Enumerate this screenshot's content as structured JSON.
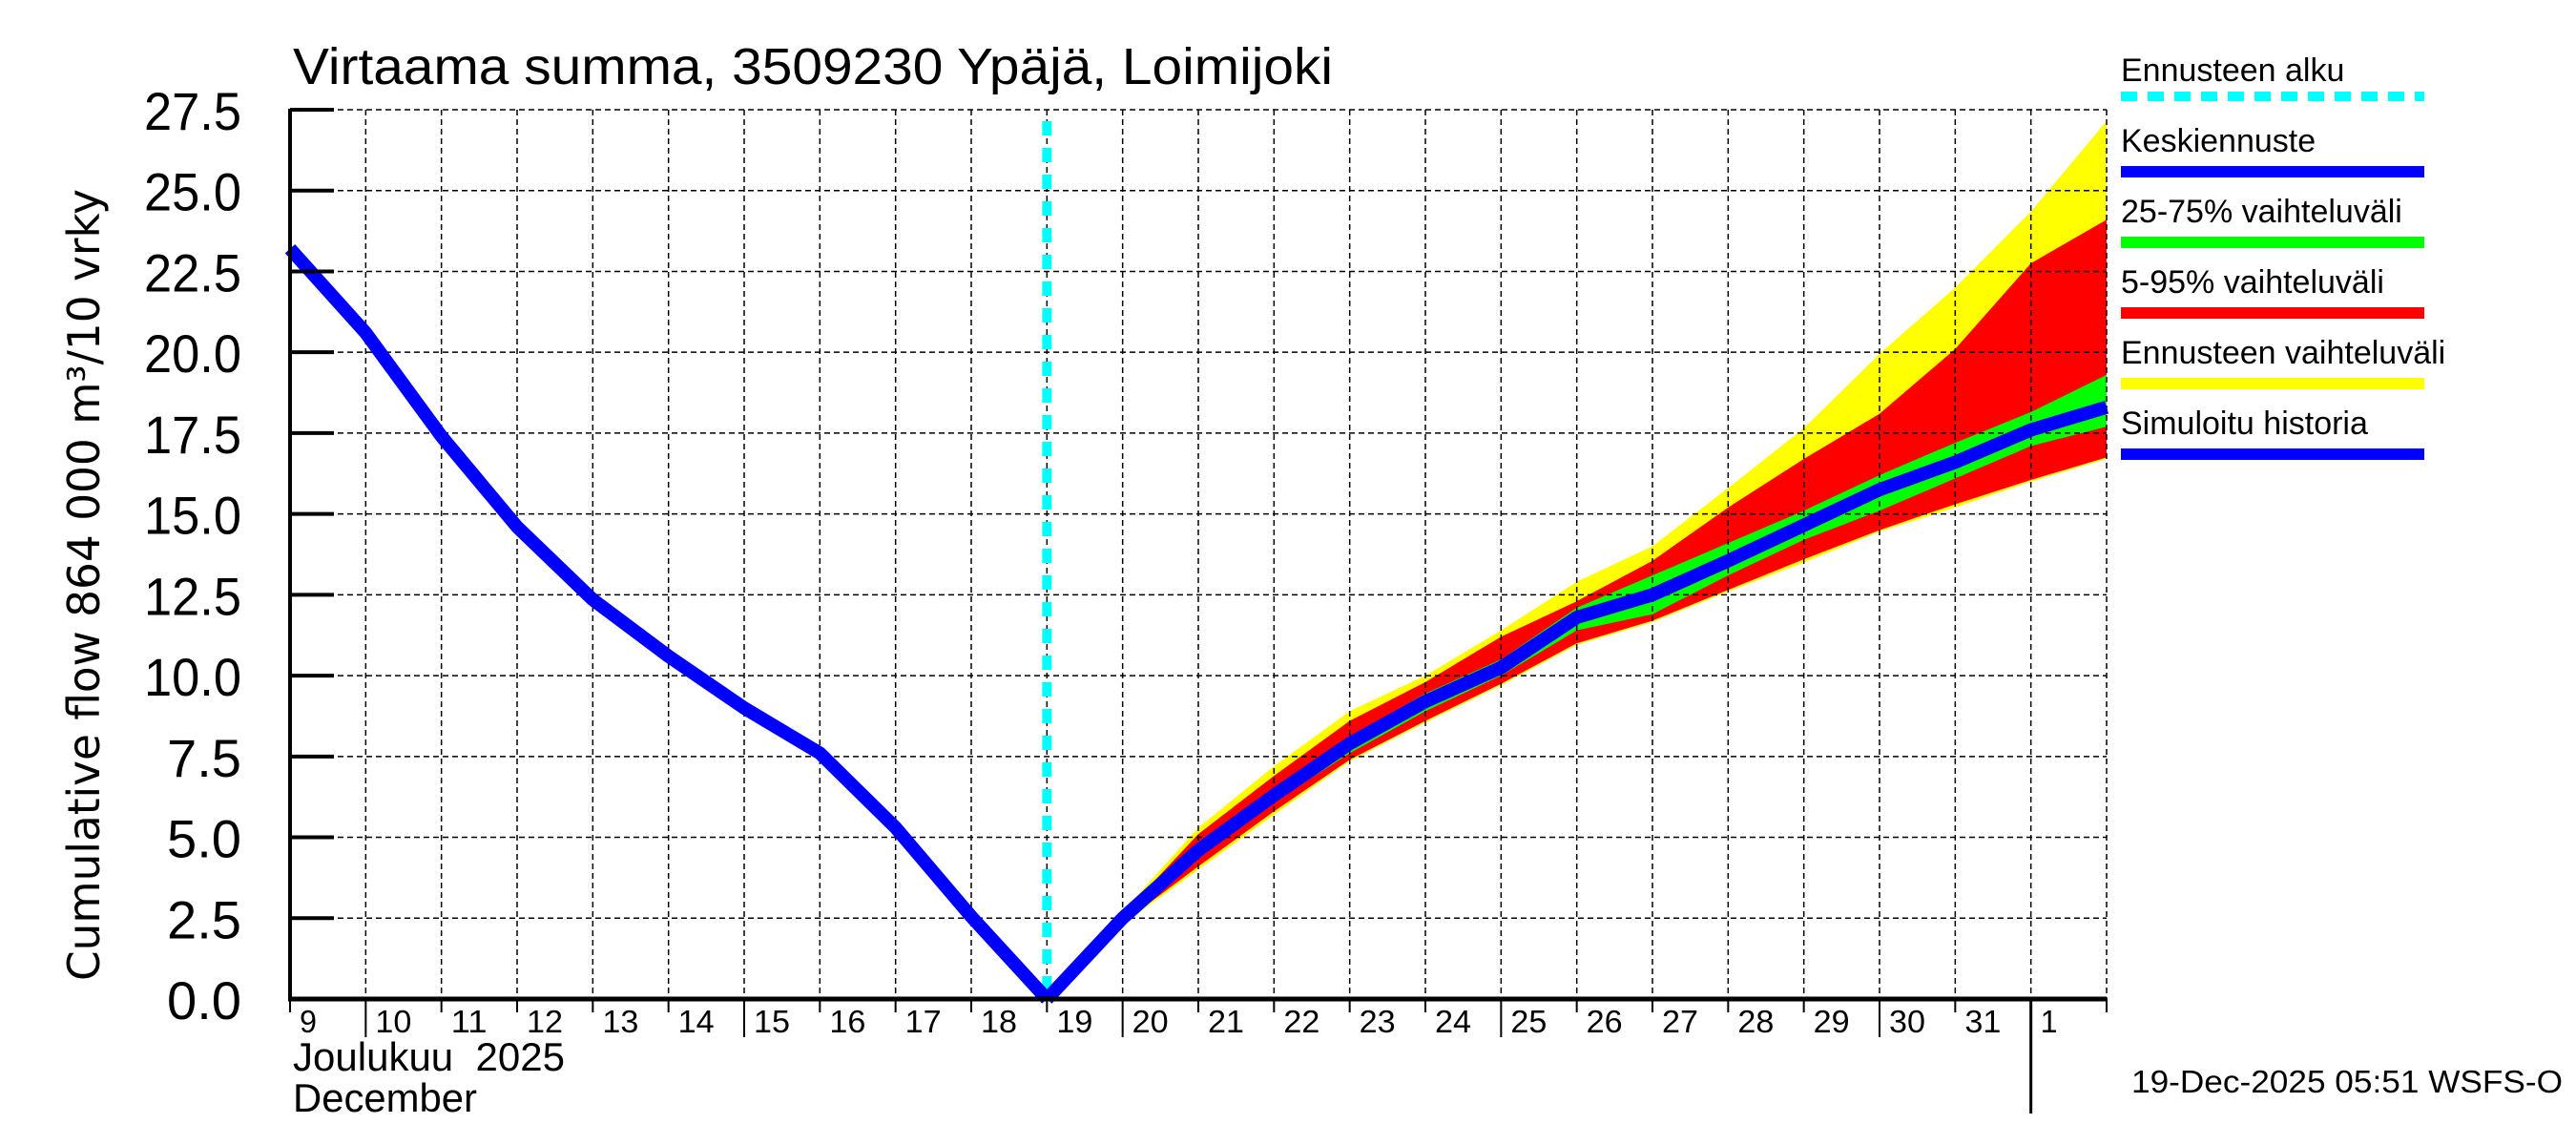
{
  "title": "Virtaama summa, 3509230 Ypäjä, Loimijoki",
  "y_axis_label": "Cumulative flow    864 000 m³/10 vrky",
  "month_label": "Joulukuu  2025",
  "month_label_en": "December",
  "timestamp": "19-Dec-2025 05:51 WSFS-O",
  "colors": {
    "forecast_start": "#00ffff",
    "median": "#0000ff",
    "p25_75": "#00ff00",
    "p5_95": "#ff0000",
    "range": "#ffff00",
    "history": "#0000ff",
    "grid": "#000000"
  },
  "legend": [
    {
      "label": "Ennusteen alku",
      "color": "#00ffff",
      "style": "dashed"
    },
    {
      "label": "Keskiennuste",
      "color": "#0000ff",
      "style": "solid"
    },
    {
      "label": "25-75% vaihteluväli",
      "color": "#00ff00",
      "style": "solid"
    },
    {
      "label": "5-95% vaihteluväli",
      "color": "#ff0000",
      "style": "solid"
    },
    {
      "label": "Ennusteen vaihteluväli",
      "color": "#ffff00",
      "style": "solid"
    },
    {
      "label": "Simuloitu historia",
      "color": "#0000ff",
      "style": "solid"
    }
  ],
  "x_tick_labels": [
    "9",
    "10",
    "11",
    "12",
    "13",
    "14",
    "15",
    "16",
    "17",
    "18",
    "19",
    "20",
    "21",
    "22",
    "23",
    "24",
    "25",
    "26",
    "27",
    "28",
    "29",
    "30",
    "31",
    "1"
  ],
  "y_tick_labels": [
    "0.0",
    "2.5",
    "5.0",
    "7.5",
    "10.0",
    "12.5",
    "15.0",
    "17.5",
    "20.0",
    "22.5",
    "25.0",
    "27.5"
  ],
  "chart_data": {
    "type": "area",
    "title": "Virtaama summa, 3509230 Ypäjä, Loimijoki",
    "xlabel": "Joulukuu 2025 / December",
    "ylabel": "Cumulative flow 864 000 m³/10 vrky",
    "ylim": [
      0,
      27.5
    ],
    "xlim": [
      "2025-12-09",
      "2026-01-02"
    ],
    "grid": true,
    "legend_position": "right",
    "forecast_start": "2025-12-19",
    "x": [
      "12-09",
      "12-10",
      "12-11",
      "12-12",
      "12-13",
      "12-14",
      "12-15",
      "12-16",
      "12-17",
      "12-18",
      "12-19",
      "12-20",
      "12-21",
      "12-22",
      "12-23",
      "12-24",
      "12-25",
      "12-26",
      "12-27",
      "12-28",
      "12-29",
      "12-30",
      "12-31",
      "01-01",
      "01-02"
    ],
    "series": [
      {
        "name": "Simuloitu historia",
        "x_index": [
          0,
          1,
          2,
          3,
          4,
          5,
          6,
          7,
          8,
          9,
          10
        ],
        "values": [
          23.2,
          20.6,
          17.4,
          14.6,
          12.35,
          10.6,
          9.0,
          7.6,
          5.3,
          2.55,
          0.0
        ]
      },
      {
        "name": "Keskiennuste",
        "x_index": [
          10,
          11,
          12,
          13,
          14,
          15,
          16,
          17,
          18,
          19,
          20,
          21,
          22,
          23,
          24
        ],
        "values": [
          0.0,
          2.5,
          4.6,
          6.3,
          7.9,
          9.2,
          10.25,
          11.8,
          12.5,
          13.55,
          14.65,
          15.75,
          16.6,
          17.6,
          18.3
        ]
      },
      {
        "name": "25-75% vaihteluväli",
        "x_index": [
          10,
          11,
          12,
          13,
          14,
          15,
          16,
          17,
          18,
          19,
          20,
          21,
          22,
          23,
          24
        ],
        "lower": [
          0.0,
          2.45,
          4.45,
          6.1,
          7.6,
          8.9,
          10.0,
          11.4,
          11.9,
          13.1,
          14.2,
          15.1,
          16.1,
          17.1,
          17.7
        ],
        "upper": [
          0.0,
          2.55,
          4.75,
          6.5,
          8.1,
          9.45,
          10.5,
          12.1,
          13.1,
          14.1,
          15.1,
          16.2,
          17.2,
          18.15,
          19.3
        ]
      },
      {
        "name": "5-95% vaihteluväli",
        "x_index": [
          10,
          11,
          12,
          13,
          14,
          15,
          16,
          17,
          18,
          19,
          20,
          21,
          22,
          23,
          24
        ],
        "lower": [
          0.0,
          2.35,
          4.1,
          5.8,
          7.4,
          8.6,
          9.75,
          11.0,
          11.7,
          12.65,
          13.6,
          14.5,
          15.3,
          16.05,
          16.75
        ],
        "upper": [
          0.0,
          2.6,
          5.1,
          6.9,
          8.6,
          9.8,
          11.2,
          12.3,
          13.55,
          15.2,
          16.7,
          18.1,
          20.1,
          22.75,
          24.1
        ]
      },
      {
        "name": "Ennusteen vaihteluväli",
        "x_index": [
          10,
          11,
          12,
          13,
          14,
          15,
          16,
          17,
          18,
          19,
          20,
          21,
          22,
          23,
          24
        ],
        "lower": [
          0.0,
          2.3,
          4.0,
          5.7,
          7.35,
          8.55,
          9.7,
          10.95,
          11.65,
          12.6,
          13.5,
          14.45,
          15.2,
          16.0,
          16.7
        ],
        "upper": [
          0.0,
          2.7,
          5.3,
          7.2,
          8.9,
          10.0,
          11.4,
          12.9,
          14.0,
          15.8,
          17.65,
          19.95,
          22.0,
          24.35,
          27.15
        ]
      }
    ]
  }
}
